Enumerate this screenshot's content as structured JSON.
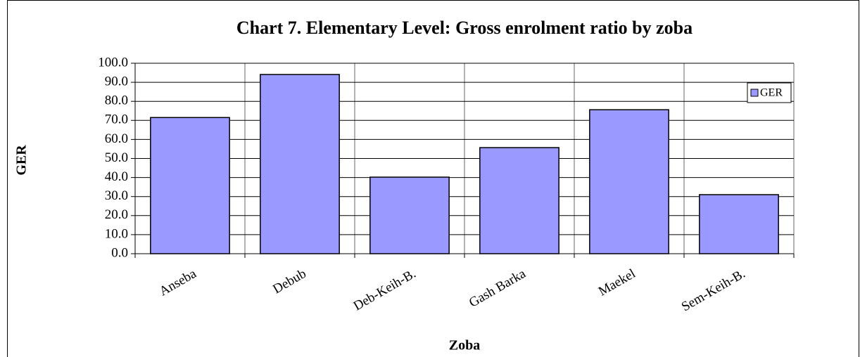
{
  "chart_data": {
    "type": "bar",
    "title": "Chart 7. Elementary Level: Gross enrolment ratio by zoba",
    "x_label": "Zoba",
    "y_label": "GER",
    "categories": [
      "Anseba",
      "Debub",
      "Deb-Keih-B.",
      "Gash Barka",
      "Maekel",
      "Sem-Keih-B."
    ],
    "series": [
      {
        "name": "GER",
        "color": "#9999ff",
        "values": [
          71.5,
          94.1,
          40.2,
          55.7,
          75.6,
          31.0
        ]
      }
    ],
    "ylim": [
      0,
      100
    ],
    "yticks": [
      {
        "value": 0,
        "label": "0.0"
      },
      {
        "value": 10,
        "label": "10.0"
      },
      {
        "value": 20,
        "label": "20.0"
      },
      {
        "value": 30,
        "label": "30.0"
      },
      {
        "value": 40,
        "label": "40.0"
      },
      {
        "value": 50,
        "label": "50.0"
      },
      {
        "value": 60,
        "label": "60.0"
      },
      {
        "value": 70,
        "label": "70.0"
      },
      {
        "value": 80,
        "label": "80.0"
      },
      {
        "value": 90,
        "label": "90.0"
      },
      {
        "value": 100,
        "label": "100.0"
      }
    ],
    "grid": true,
    "legend": "upper right"
  }
}
